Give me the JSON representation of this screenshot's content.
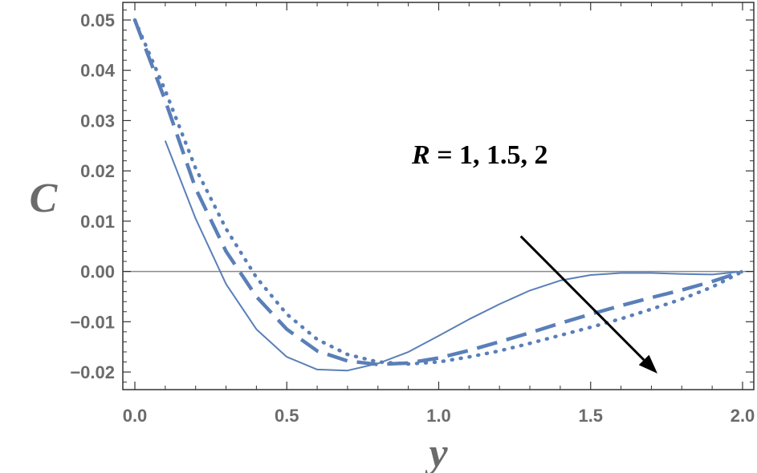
{
  "chart_data": {
    "type": "line",
    "xlabel": "y",
    "ylabel": "C",
    "xlim": [
      0.0,
      2.0
    ],
    "ylim": [
      -0.0235,
      0.0535
    ],
    "xticks": [
      "0.0",
      "0.5",
      "1.0",
      "1.5",
      "2.0"
    ],
    "yticks": [
      "0.05",
      "0.04",
      "0.03",
      "0.02",
      "0.01",
      "0.00",
      "−0.01",
      "−0.02"
    ],
    "ytick_values": [
      0.05,
      0.04,
      0.03,
      0.02,
      0.01,
      0.0,
      -0.01,
      -0.02
    ],
    "xtick_values": [
      0.0,
      0.5,
      1.0,
      1.5,
      2.0
    ],
    "annotation": {
      "R_text": "R",
      "values_text": " = 1,  1.5,  2"
    },
    "series_color": "#5a7fb8",
    "series": [
      {
        "style": "solid",
        "x": [
          0.1,
          0.2,
          0.3,
          0.4,
          0.5,
          0.6,
          0.7,
          0.8,
          0.9,
          1.0,
          1.1,
          1.2,
          1.3,
          1.4,
          1.5,
          1.6,
          1.7,
          1.8,
          1.9,
          2.0
        ],
        "y": [
          0.026,
          0.0105,
          -0.0025,
          -0.0115,
          -0.017,
          -0.0195,
          -0.0197,
          -0.0183,
          -0.016,
          -0.0128,
          -0.0095,
          -0.0065,
          -0.0038,
          -0.0018,
          -0.0007,
          -0.0003,
          -0.0003,
          -0.0005,
          -0.0006,
          0.0
        ]
      },
      {
        "style": "dashed",
        "x": [
          0.0,
          0.1,
          0.2,
          0.3,
          0.4,
          0.5,
          0.6,
          0.7,
          0.8,
          0.9,
          1.0,
          1.1,
          1.2,
          1.3,
          1.4,
          1.5,
          1.6,
          1.7,
          1.8,
          1.9,
          2.0
        ],
        "y": [
          0.05,
          0.034,
          0.0165,
          0.004,
          -0.005,
          -0.0115,
          -0.0158,
          -0.0178,
          -0.0185,
          -0.0182,
          -0.0172,
          -0.0157,
          -0.014,
          -0.0122,
          -0.0103,
          -0.0085,
          -0.0068,
          -0.0052,
          -0.0037,
          -0.002,
          0.0
        ]
      },
      {
        "style": "dotted",
        "x": [
          0.0,
          0.1,
          0.2,
          0.3,
          0.4,
          0.5,
          0.6,
          0.7,
          0.8,
          0.9,
          1.0,
          1.1,
          1.2,
          1.3,
          1.4,
          1.5,
          1.6,
          1.7,
          1.8,
          1.9,
          2.0
        ],
        "y": [
          0.05,
          0.036,
          0.0205,
          0.0085,
          -0.0012,
          -0.0085,
          -0.0135,
          -0.0165,
          -0.018,
          -0.0184,
          -0.018,
          -0.017,
          -0.0158,
          -0.0143,
          -0.0127,
          -0.0111,
          -0.0094,
          -0.0075,
          -0.0055,
          -0.0031,
          0.0
        ]
      }
    ],
    "arrow": {
      "from": [
        1.27,
        0.007
      ],
      "to": [
        1.72,
        -0.0203
      ]
    }
  }
}
